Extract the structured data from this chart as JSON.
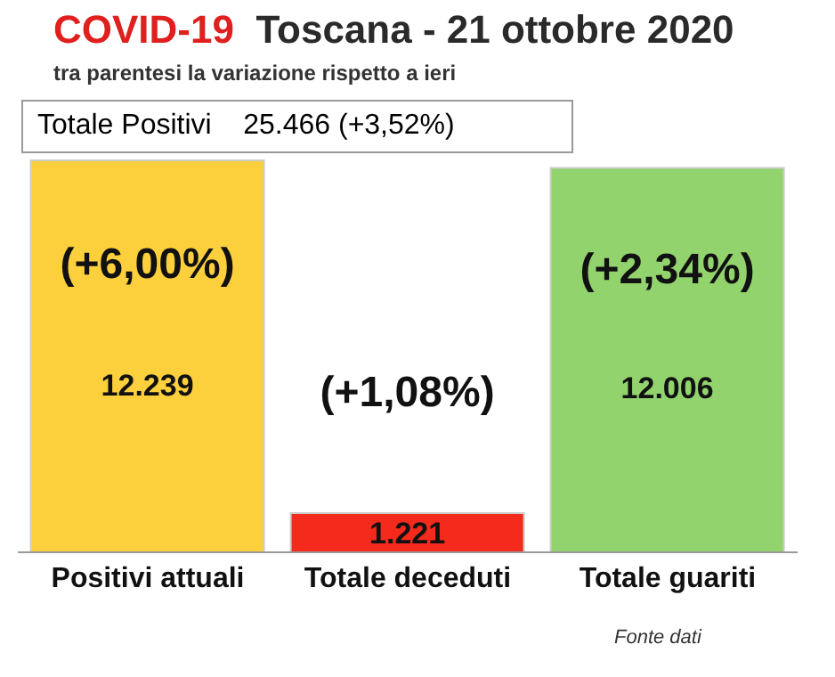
{
  "chart_data": {
    "type": "bar",
    "title": "COVID-19  Toscana - 21 ottobre 2020",
    "subtitle": "tra parentesi la variazione rispetto a ieri",
    "categories": [
      "Positivi attuali",
      "Totale deceduti",
      "Totale guariti"
    ],
    "values": [
      12239,
      1221,
      12006
    ],
    "colors": [
      "#fccf3c",
      "#f42a1c",
      "#92d36e"
    ],
    "value_labels": [
      "12.239",
      "1.221",
      "12.006"
    ],
    "annotations": [
      "Totale Positivi    25.466 (+3,52%)",
      "(+6,00%)",
      "(+1,08%)",
      "(+2,34%)",
      "Fonte dati"
    ]
  }
}
